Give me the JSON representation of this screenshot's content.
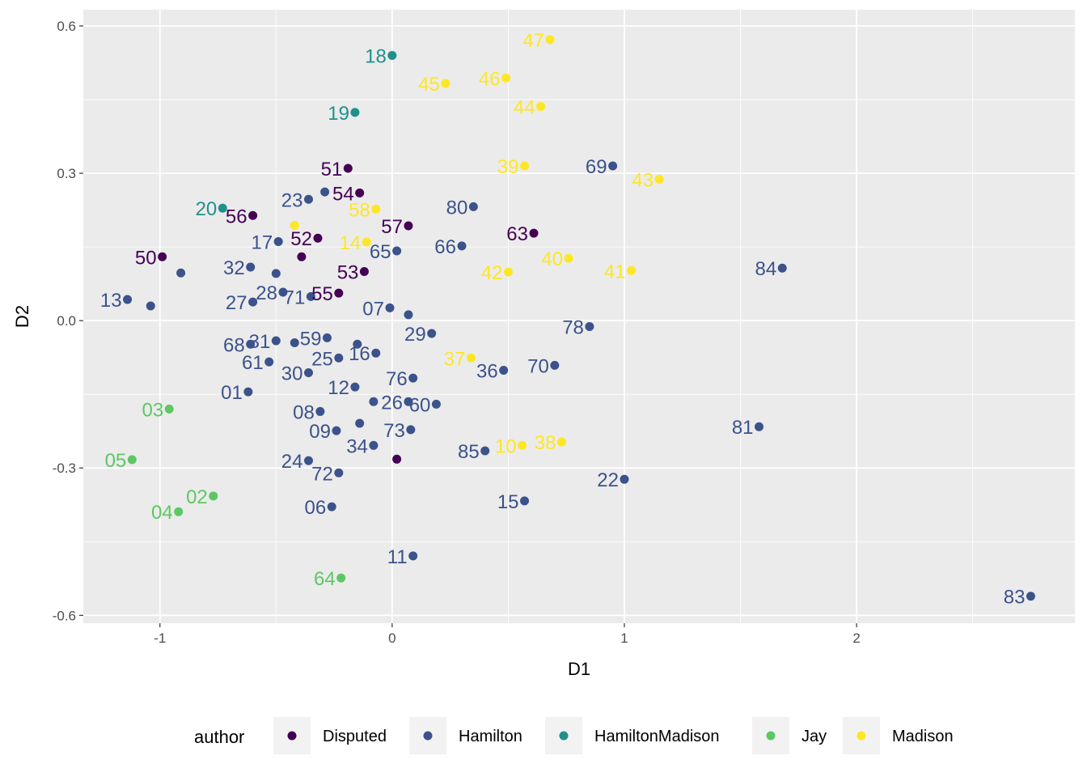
{
  "chart_data": {
    "type": "scatter",
    "xlabel": "D1",
    "ylabel": "D2",
    "xlim": [
      -1.33,
      2.94
    ],
    "ylim": [
      -0.616,
      0.633
    ],
    "x_ticks": [
      "-1",
      "0",
      "1",
      "2"
    ],
    "x_tick_values": [
      -1,
      0,
      1,
      2
    ],
    "y_ticks": [
      "-0.6",
      "-0.3",
      "0.0",
      "0.3",
      "0.6"
    ],
    "y_tick_values": [
      -0.6,
      -0.3,
      0,
      0.3,
      0.6
    ],
    "grid": true,
    "legend": {
      "title": "author",
      "placement": "bottom",
      "entries": [
        "Disputed",
        "Hamilton",
        "HamiltonMadison",
        "Jay",
        "Madison"
      ]
    },
    "colors": {
      "Disputed": "#440154",
      "Hamilton": "#3B528B",
      "HamiltonMadison": "#21908C",
      "Jay": "#5DC863",
      "Madison": "#FDE725"
    },
    "points": [
      {
        "label": "51",
        "author": "Disputed",
        "x": -0.19,
        "y": 0.31
      },
      {
        "label": "54",
        "author": "Disputed",
        "x": -0.14,
        "y": 0.26
      },
      {
        "label": "56",
        "author": "Disputed",
        "x": -0.6,
        "y": 0.214
      },
      {
        "label": "52",
        "author": "Disputed",
        "x": -0.32,
        "y": 0.168
      },
      {
        "label": "57",
        "author": "Disputed",
        "x": 0.07,
        "y": 0.193
      },
      {
        "label": "63",
        "author": "Disputed",
        "x": 0.61,
        "y": 0.178
      },
      {
        "label": "50",
        "author": "Disputed",
        "x": -0.99,
        "y": 0.13
      },
      {
        "label": "",
        "author": "Disputed",
        "x": -0.39,
        "y": 0.13
      },
      {
        "label": "53",
        "author": "Disputed",
        "x": -0.12,
        "y": 0.1
      },
      {
        "label": "55",
        "author": "Disputed",
        "x": -0.23,
        "y": 0.056
      },
      {
        "label": "",
        "author": "Disputed",
        "x": 0.02,
        "y": -0.282
      },
      {
        "label": "18",
        "author": "HamiltonMadison",
        "x": 0.0,
        "y": 0.54
      },
      {
        "label": "19",
        "author": "HamiltonMadison",
        "x": -0.16,
        "y": 0.424
      },
      {
        "label": "20",
        "author": "HamiltonMadison",
        "x": -0.73,
        "y": 0.229
      },
      {
        "label": "03",
        "author": "Jay",
        "x": -0.96,
        "y": -0.18
      },
      {
        "label": "05",
        "author": "Jay",
        "x": -1.12,
        "y": -0.283
      },
      {
        "label": "02",
        "author": "Jay",
        "x": -0.77,
        "y": -0.357
      },
      {
        "label": "04",
        "author": "Jay",
        "x": -0.92,
        "y": -0.389
      },
      {
        "label": "64",
        "author": "Jay",
        "x": -0.22,
        "y": -0.524
      },
      {
        "label": "47",
        "author": "Madison",
        "x": 0.68,
        "y": 0.572
      },
      {
        "label": "46",
        "author": "Madison",
        "x": 0.49,
        "y": 0.494
      },
      {
        "label": "45",
        "author": "Madison",
        "x": 0.23,
        "y": 0.483
      },
      {
        "label": "44",
        "author": "Madison",
        "x": 0.64,
        "y": 0.436
      },
      {
        "label": "39",
        "author": "Madison",
        "x": 0.57,
        "y": 0.315
      },
      {
        "label": "43",
        "author": "Madison",
        "x": 1.15,
        "y": 0.288
      },
      {
        "label": "58",
        "author": "Madison",
        "x": -0.07,
        "y": 0.227
      },
      {
        "label": "",
        "author": "Madison",
        "x": -0.42,
        "y": 0.194
      },
      {
        "label": "14",
        "author": "Madison",
        "x": -0.11,
        "y": 0.16
      },
      {
        "label": "40",
        "author": "Madison",
        "x": 0.76,
        "y": 0.127
      },
      {
        "label": "41",
        "author": "Madison",
        "x": 1.03,
        "y": 0.102
      },
      {
        "label": "42",
        "author": "Madison",
        "x": 0.5,
        "y": 0.099
      },
      {
        "label": "37",
        "author": "Madison",
        "x": 0.34,
        "y": -0.076
      },
      {
        "label": "10",
        "author": "Madison",
        "x": 0.56,
        "y": -0.254
      },
      {
        "label": "38",
        "author": "Madison",
        "x": 0.73,
        "y": -0.247
      },
      {
        "label": "69",
        "author": "Hamilton",
        "x": 0.95,
        "y": 0.315
      },
      {
        "label": "23",
        "author": "Hamilton",
        "x": -0.36,
        "y": 0.247
      },
      {
        "label": "",
        "author": "Hamilton",
        "x": -0.29,
        "y": 0.262
      },
      {
        "label": "80",
        "author": "Hamilton",
        "x": 0.35,
        "y": 0.232
      },
      {
        "label": "17",
        "author": "Hamilton",
        "x": -0.49,
        "y": 0.161
      },
      {
        "label": "65",
        "author": "Hamilton",
        "x": 0.02,
        "y": 0.142
      },
      {
        "label": "66",
        "author": "Hamilton",
        "x": 0.3,
        "y": 0.152
      },
      {
        "label": "84",
        "author": "Hamilton",
        "x": 1.68,
        "y": 0.107
      },
      {
        "label": "32",
        "author": "Hamilton",
        "x": -0.61,
        "y": 0.109
      },
      {
        "label": "",
        "author": "Hamilton",
        "x": -0.5,
        "y": 0.096
      },
      {
        "label": "",
        "author": "Hamilton",
        "x": -0.91,
        "y": 0.097
      },
      {
        "label": "13",
        "author": "Hamilton",
        "x": -1.14,
        "y": 0.043
      },
      {
        "label": "",
        "author": "Hamilton",
        "x": -1.04,
        "y": 0.03
      },
      {
        "label": "27",
        "author": "Hamilton",
        "x": -0.6,
        "y": 0.038
      },
      {
        "label": "28",
        "author": "Hamilton",
        "x": -0.47,
        "y": 0.058
      },
      {
        "label": "71",
        "author": "Hamilton",
        "x": -0.35,
        "y": 0.049
      },
      {
        "label": "07",
        "author": "Hamilton",
        "x": -0.01,
        "y": 0.026
      },
      {
        "label": "",
        "author": "Hamilton",
        "x": 0.07,
        "y": 0.012
      },
      {
        "label": "29",
        "author": "Hamilton",
        "x": 0.17,
        "y": -0.026
      },
      {
        "label": "78",
        "author": "Hamilton",
        "x": 0.85,
        "y": -0.012
      },
      {
        "label": "68",
        "author": "Hamilton",
        "x": -0.61,
        "y": -0.048
      },
      {
        "label": "31",
        "author": "Hamilton",
        "x": -0.5,
        "y": -0.041
      },
      {
        "label": "",
        "author": "Hamilton",
        "x": -0.42,
        "y": -0.045
      },
      {
        "label": "59",
        "author": "Hamilton",
        "x": -0.28,
        "y": -0.035
      },
      {
        "label": "",
        "author": "Hamilton",
        "x": -0.15,
        "y": -0.048
      },
      {
        "label": "16",
        "author": "Hamilton",
        "x": -0.07,
        "y": -0.066
      },
      {
        "label": "25",
        "author": "Hamilton",
        "x": -0.23,
        "y": -0.076
      },
      {
        "label": "61",
        "author": "Hamilton",
        "x": -0.53,
        "y": -0.084
      },
      {
        "label": "30",
        "author": "Hamilton",
        "x": -0.36,
        "y": -0.106
      },
      {
        "label": "36",
        "author": "Hamilton",
        "x": 0.48,
        "y": -0.101
      },
      {
        "label": "70",
        "author": "Hamilton",
        "x": 0.7,
        "y": -0.091
      },
      {
        "label": "76",
        "author": "Hamilton",
        "x": 0.09,
        "y": -0.117
      },
      {
        "label": "12",
        "author": "Hamilton",
        "x": -0.16,
        "y": -0.135
      },
      {
        "label": "01",
        "author": "Hamilton",
        "x": -0.62,
        "y": -0.145
      },
      {
        "label": "",
        "author": "Hamilton",
        "x": -0.08,
        "y": -0.165
      },
      {
        "label": "26",
        "author": "Hamilton",
        "x": 0.07,
        "y": -0.165
      },
      {
        "label": "60",
        "author": "Hamilton",
        "x": 0.19,
        "y": -0.17
      },
      {
        "label": "08",
        "author": "Hamilton",
        "x": -0.31,
        "y": -0.185
      },
      {
        "label": "",
        "author": "Hamilton",
        "x": -0.14,
        "y": -0.209
      },
      {
        "label": "09",
        "author": "Hamilton",
        "x": -0.24,
        "y": -0.224
      },
      {
        "label": "73",
        "author": "Hamilton",
        "x": 0.08,
        "y": -0.222
      },
      {
        "label": "34",
        "author": "Hamilton",
        "x": -0.08,
        "y": -0.254
      },
      {
        "label": "85",
        "author": "Hamilton",
        "x": 0.4,
        "y": -0.265
      },
      {
        "label": "81",
        "author": "Hamilton",
        "x": 1.58,
        "y": -0.216
      },
      {
        "label": "24",
        "author": "Hamilton",
        "x": -0.36,
        "y": -0.285
      },
      {
        "label": "72",
        "author": "Hamilton",
        "x": -0.23,
        "y": -0.31
      },
      {
        "label": "22",
        "author": "Hamilton",
        "x": 1.0,
        "y": -0.323
      },
      {
        "label": "15",
        "author": "Hamilton",
        "x": 0.57,
        "y": -0.367
      },
      {
        "label": "06",
        "author": "Hamilton",
        "x": -0.26,
        "y": -0.379
      },
      {
        "label": "11",
        "author": "Hamilton",
        "x": 0.09,
        "y": -0.479
      },
      {
        "label": "83",
        "author": "Hamilton",
        "x": 2.75,
        "y": -0.561
      }
    ]
  }
}
